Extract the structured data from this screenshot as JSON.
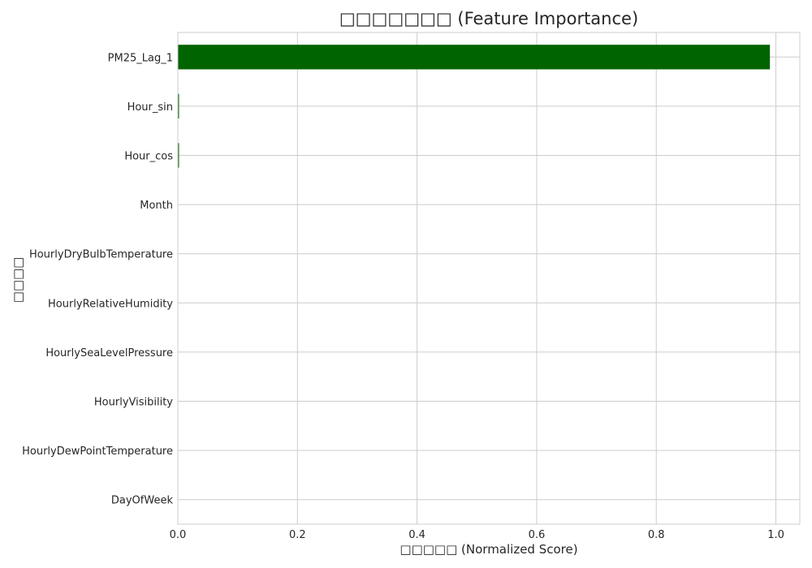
{
  "chart_data": {
    "type": "bar",
    "orientation": "horizontal",
    "title": "□□□□□□□ (Feature Importance)",
    "xlabel": "□□□□□ (Normalized Score)",
    "ylabel": "□□□□",
    "categories": [
      "PM25_Lag_1",
      "Hour_sin",
      "Hour_cos",
      "Month",
      "HourlyDryBulbTemperature",
      "HourlyRelativeHumidity",
      "HourlySeaLevelPressure",
      "HourlyVisibility",
      "HourlyDewPointTemperature",
      "DayOfWeek"
    ],
    "values": [
      0.99,
      0.002,
      0.002,
      0.0,
      0.0,
      0.0,
      0.0,
      0.0,
      0.0,
      0.0
    ],
    "xlim": [
      0.0,
      1.04
    ],
    "xticks": [
      0.0,
      0.2,
      0.4,
      0.6,
      0.8,
      1.0
    ],
    "xtick_labels": [
      "0.0",
      "0.2",
      "0.4",
      "0.6",
      "0.8",
      "1.0"
    ],
    "bar_color": "#006400",
    "grid": true,
    "grid_color": "#cccccc",
    "frame_color": "#cccccc"
  }
}
